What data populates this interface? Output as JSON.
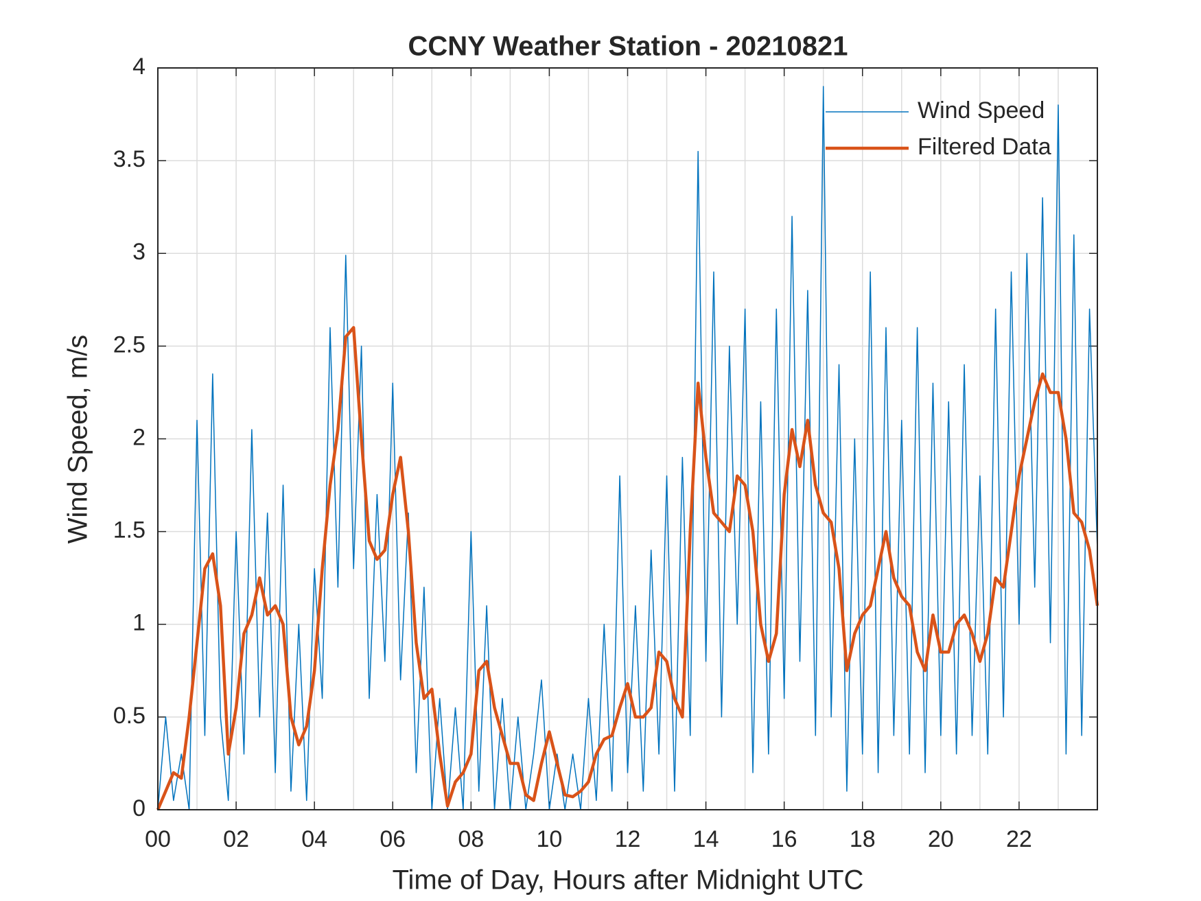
{
  "chart_data": {
    "type": "line",
    "title": "CCNY Weather Station - 20210821",
    "xlabel": "Time of Day, Hours after Midnight UTC",
    "ylabel": "Wind Speed, m/s",
    "x": [
      0,
      0.2,
      0.4,
      0.6,
      0.8,
      1,
      1.2,
      1.4,
      1.6,
      1.8,
      2,
      2.2,
      2.4,
      2.6,
      2.8,
      3,
      3.2,
      3.4,
      3.6,
      3.8,
      4,
      4.2,
      4.4,
      4.6,
      4.8,
      5,
      5.2,
      5.4,
      5.6,
      5.8,
      6,
      6.2,
      6.4,
      6.6,
      6.8,
      7,
      7.2,
      7.4,
      7.6,
      7.8,
      8,
      8.2,
      8.4,
      8.6,
      8.8,
      9,
      9.2,
      9.4,
      9.6,
      9.8,
      10,
      10.2,
      10.4,
      10.6,
      10.8,
      11,
      11.2,
      11.4,
      11.6,
      11.8,
      12,
      12.2,
      12.4,
      12.6,
      12.8,
      13,
      13.2,
      13.4,
      13.6,
      13.8,
      14,
      14.2,
      14.4,
      14.6,
      14.8,
      15,
      15.2,
      15.4,
      15.6,
      15.8,
      16,
      16.2,
      16.4,
      16.6,
      16.8,
      17,
      17.2,
      17.4,
      17.6,
      17.8,
      18,
      18.2,
      18.4,
      18.6,
      18.8,
      19,
      19.2,
      19.4,
      19.6,
      19.8,
      20,
      20.2,
      20.4,
      20.6,
      20.8,
      21,
      21.2,
      21.4,
      21.6,
      21.8,
      22,
      22.2,
      22.4,
      22.6,
      22.8,
      23,
      23.2,
      23.4,
      23.6,
      23.8,
      24
    ],
    "series": [
      {
        "name": "Wind Speed",
        "color": "#0072bd",
        "width": 1.5,
        "values": [
          0,
          0.5,
          0.05,
          0.3,
          0,
          2.1,
          0.4,
          2.35,
          0.5,
          0.05,
          1.5,
          0.3,
          2.05,
          0.5,
          1.6,
          0.2,
          1.75,
          0.1,
          1,
          0.05,
          1.3,
          0.6,
          2.6,
          1.2,
          2.99,
          1.3,
          2.5,
          0.6,
          1.7,
          0.8,
          2.3,
          0.7,
          1.6,
          0.2,
          1.2,
          0,
          0.6,
          0,
          0.55,
          0,
          1.5,
          0.1,
          1.1,
          0,
          0.6,
          0,
          0.5,
          0,
          0.3,
          0.7,
          0,
          0.3,
          0,
          0.3,
          0,
          0.6,
          0.05,
          1,
          0.1,
          1.8,
          0.2,
          1.1,
          0.1,
          1.4,
          0.3,
          1.8,
          0.1,
          1.9,
          0.4,
          3.55,
          0.8,
          2.9,
          0.5,
          2.5,
          1,
          2.7,
          0.2,
          2.2,
          0.3,
          2.7,
          0.6,
          3.2,
          0.8,
          2.8,
          0.4,
          3.9,
          0.5,
          2.4,
          0.1,
          2,
          0.3,
          2.9,
          0.2,
          2.6,
          0.4,
          2.1,
          0.3,
          2.6,
          0.2,
          2.3,
          0.4,
          2.2,
          0.3,
          2.4,
          0.4,
          1.8,
          0.3,
          2.7,
          0.5,
          2.9,
          1,
          3,
          1.2,
          3.3,
          0.9,
          3.8,
          0.3,
          3.1,
          0.4,
          2.7,
          1.4
        ]
      },
      {
        "name": "Filtered Data",
        "color": "#d95319",
        "width": 4.5,
        "values": [
          0,
          0.1,
          0.2,
          0.17,
          0.5,
          0.9,
          1.3,
          1.38,
          1.1,
          0.3,
          0.55,
          0.95,
          1.05,
          1.25,
          1.05,
          1.1,
          1,
          0.5,
          0.35,
          0.45,
          0.75,
          1.3,
          1.75,
          2.05,
          2.55,
          2.6,
          2,
          1.45,
          1.35,
          1.4,
          1.7,
          1.9,
          1.5,
          0.9,
          0.6,
          0.65,
          0.3,
          0.02,
          0.15,
          0.2,
          0.3,
          0.75,
          0.8,
          0.55,
          0.4,
          0.25,
          0.25,
          0.08,
          0.05,
          0.25,
          0.42,
          0.25,
          0.08,
          0.07,
          0.1,
          0.15,
          0.3,
          0.38,
          0.4,
          0.55,
          0.68,
          0.5,
          0.5,
          0.55,
          0.85,
          0.8,
          0.6,
          0.5,
          1.5,
          2.3,
          1.9,
          1.6,
          1.55,
          1.5,
          1.8,
          1.75,
          1.5,
          1,
          0.8,
          0.95,
          1.7,
          2.05,
          1.85,
          2.1,
          1.75,
          1.6,
          1.55,
          1.3,
          0.75,
          0.95,
          1.05,
          1.1,
          1.3,
          1.5,
          1.25,
          1.15,
          1.1,
          0.85,
          0.75,
          1.05,
          0.85,
          0.85,
          1,
          1.05,
          0.95,
          0.8,
          0.95,
          1.25,
          1.2,
          1.5,
          1.8,
          2,
          2.2,
          2.35,
          2.25,
          2.25,
          2,
          1.6,
          1.55,
          1.4,
          1.1
        ]
      }
    ],
    "xlim": [
      0,
      24
    ],
    "xticks": [
      {
        "value": 0,
        "label": "00"
      },
      {
        "value": 2,
        "label": "02"
      },
      {
        "value": 4,
        "label": "04"
      },
      {
        "value": 6,
        "label": "06"
      },
      {
        "value": 8,
        "label": "08"
      },
      {
        "value": 10,
        "label": "10"
      },
      {
        "value": 12,
        "label": "12"
      },
      {
        "value": 14,
        "label": "14"
      },
      {
        "value": 16,
        "label": "16"
      },
      {
        "value": 18,
        "label": "18"
      },
      {
        "value": 20,
        "label": "20"
      },
      {
        "value": 22,
        "label": "22"
      }
    ],
    "xminorgrid": [
      1,
      3,
      5,
      7,
      9,
      11,
      13,
      15,
      17,
      19,
      21,
      23
    ],
    "ylim": [
      0,
      4
    ],
    "yticks": [
      0,
      0.5,
      1,
      1.5,
      2,
      2.5,
      3,
      3.5,
      4
    ],
    "grid": true,
    "legend": "upper-right"
  }
}
